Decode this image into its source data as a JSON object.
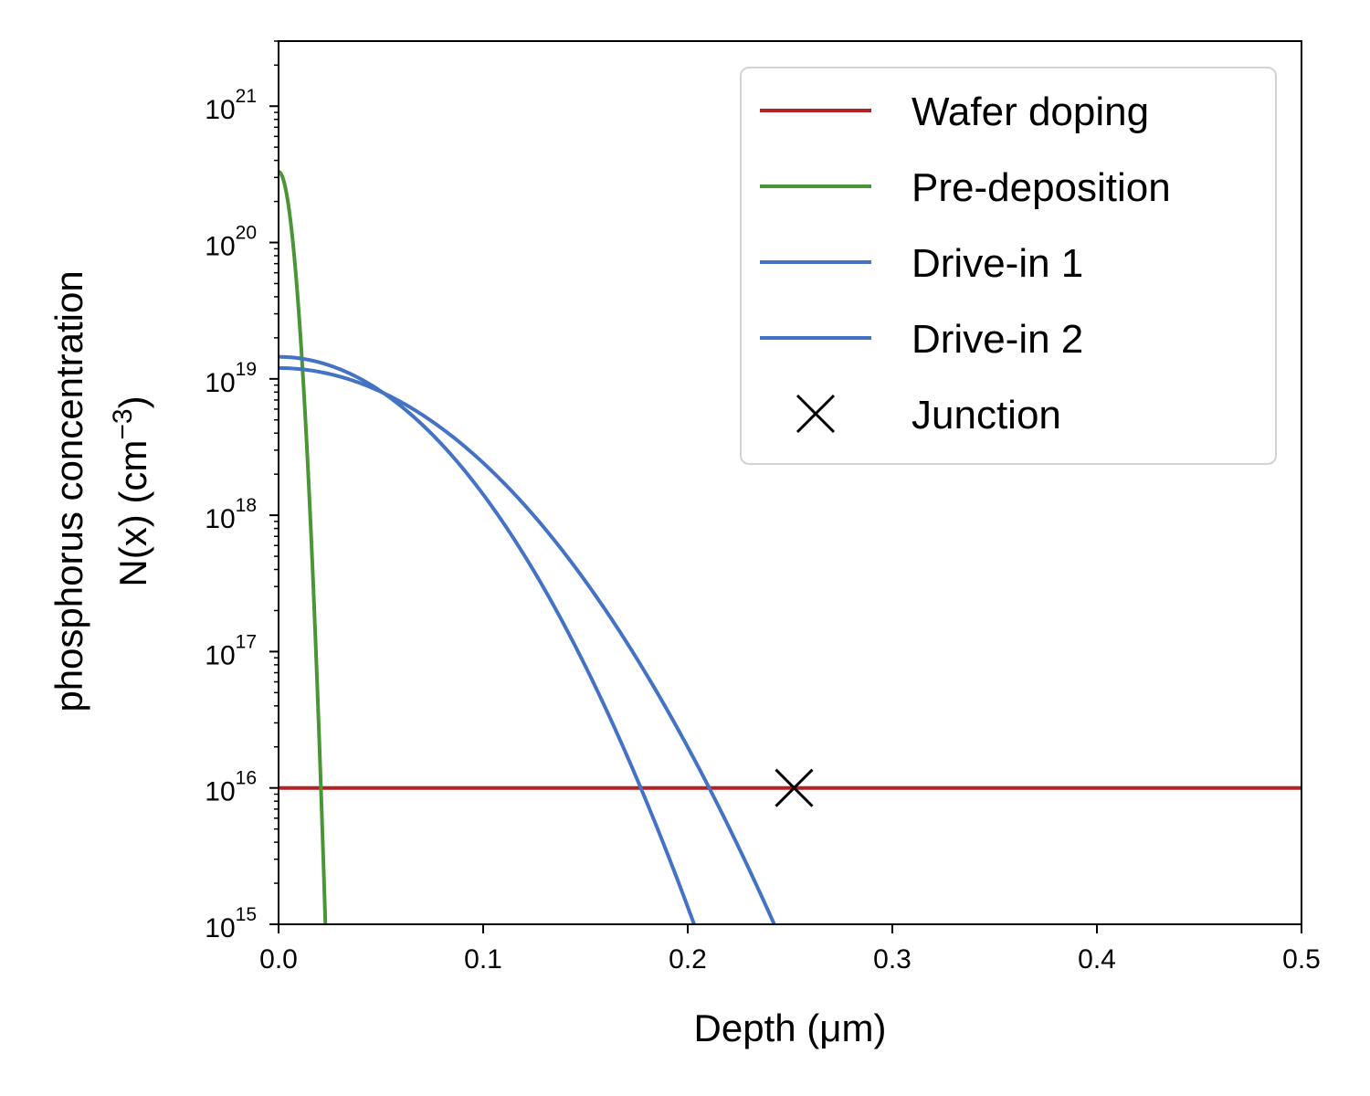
{
  "chart_data": {
    "type": "line",
    "xlabel": "Depth (μm)",
    "ylabel_line1": "phosphorus concentration",
    "ylabel_line2": "N(x) (cm",
    "ylabel_sup": "−3",
    "ylabel_close": ")",
    "xlim": [
      0.0,
      0.5
    ],
    "ylim": [
      1000000000000000.0,
      3e+21
    ],
    "yscale": "log",
    "x_ticks": [
      {
        "value": 0.0,
        "label": "0.0"
      },
      {
        "value": 0.1,
        "label": "0.1"
      },
      {
        "value": 0.2,
        "label": "0.2"
      },
      {
        "value": 0.3,
        "label": "0.3"
      },
      {
        "value": 0.4,
        "label": "0.4"
      },
      {
        "value": 0.5,
        "label": "0.5"
      }
    ],
    "y_ticks": [
      {
        "value": 1000000000000000.0,
        "base": "10",
        "exp": "15"
      },
      {
        "value": 1e+16,
        "base": "10",
        "exp": "16"
      },
      {
        "value": 1e+17,
        "base": "10",
        "exp": "17"
      },
      {
        "value": 1e+18,
        "base": "10",
        "exp": "18"
      },
      {
        "value": 1e+19,
        "base": "10",
        "exp": "19"
      },
      {
        "value": 1e+20,
        "base": "10",
        "exp": "20"
      },
      {
        "value": 1e+21,
        "base": "10",
        "exp": "21"
      }
    ],
    "legend_position": "top-right",
    "series": [
      {
        "name": "Wafer doping",
        "color": "#b22222",
        "kind": "hline",
        "y": 1e+16
      },
      {
        "name": "Pre-deposition",
        "color": "#4a9535",
        "kind": "gaussian",
        "N0": 3.3e+20,
        "L": 0.00454
      },
      {
        "name": "Drive-in 1",
        "color": "#4472c4",
        "kind": "gaussian",
        "N0": 1.45e+19,
        "L": 0.0464
      },
      {
        "name": "Drive-in 2",
        "color": "#4472c4",
        "kind": "gaussian",
        "N0": 1.2e+19,
        "L": 0.0559
      }
    ],
    "markers": [
      {
        "name": "Junction",
        "x": 0.252,
        "y": 1e+16,
        "symbol": "x",
        "color": "#000000"
      }
    ]
  }
}
